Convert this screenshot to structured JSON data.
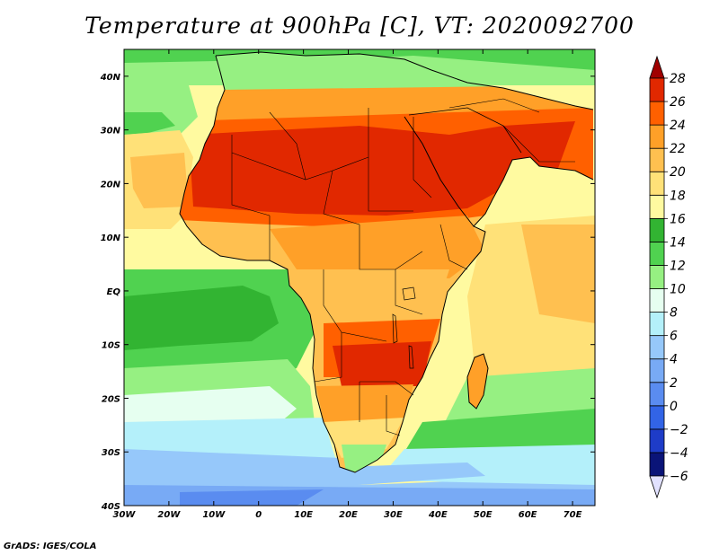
{
  "title": "Temperature at 900hPa [C], VT: 2020092700",
  "credit": "GrADS: IGES/COLA",
  "map": {
    "lon_range": [
      -30,
      75
    ],
    "lat_range": [
      -40,
      45
    ],
    "lon_ticks": [
      {
        "value": -30,
        "label": "30W"
      },
      {
        "value": -20,
        "label": "20W"
      },
      {
        "value": -10,
        "label": "10W"
      },
      {
        "value": 0,
        "label": "0"
      },
      {
        "value": 10,
        "label": "10E"
      },
      {
        "value": 20,
        "label": "20E"
      },
      {
        "value": 30,
        "label": "30E"
      },
      {
        "value": 40,
        "label": "40E"
      },
      {
        "value": 50,
        "label": "50E"
      },
      {
        "value": 60,
        "label": "60E"
      },
      {
        "value": 70,
        "label": "70E"
      }
    ],
    "lat_ticks": [
      {
        "value": 40,
        "label": "40N"
      },
      {
        "value": 30,
        "label": "30N"
      },
      {
        "value": 20,
        "label": "20N"
      },
      {
        "value": 10,
        "label": "10N"
      },
      {
        "value": 0,
        "label": "EQ"
      },
      {
        "value": -10,
        "label": "10S"
      },
      {
        "value": -20,
        "label": "20S"
      },
      {
        "value": -30,
        "label": "30S"
      },
      {
        "value": -40,
        "label": "40S"
      }
    ]
  },
  "colorbar": {
    "levels": [
      -6,
      -4,
      -2,
      0,
      2,
      4,
      6,
      8,
      10,
      12,
      14,
      16,
      18,
      20,
      22,
      24,
      26,
      28
    ],
    "colors": [
      "#e1e1ff",
      "#0a1478",
      "#1e3cc8",
      "#3264e6",
      "#5a8cf0",
      "#78aaf5",
      "#96c8fa",
      "#b4f0fa",
      "#e6fff0",
      "#96f082",
      "#50d250",
      "#32b432",
      "#fffaa0",
      "#ffe178",
      "#ffc050",
      "#ffa028",
      "#ff6000",
      "#e12800",
      "#a00000"
    ]
  }
}
